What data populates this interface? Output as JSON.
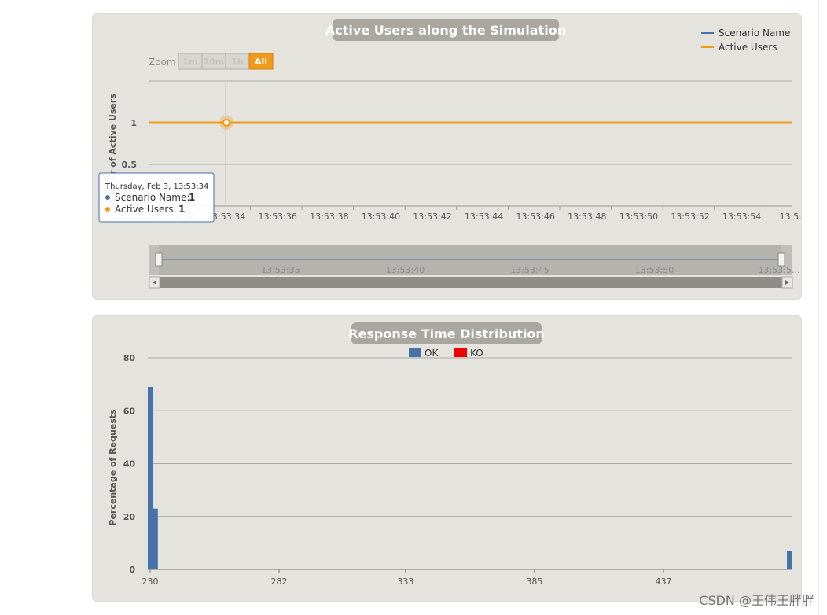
{
  "watermark": "CSDN @王伟王胖胖",
  "colors": {
    "panel_bg": "#e5e3de",
    "title_bg": "#a9a7a0",
    "orange": "#f09a1b",
    "blue": "#4572a7",
    "red": "#ee0000",
    "grid": "#a8a8a8"
  },
  "chart_data": [
    {
      "type": "line",
      "title": "Active Users along the Simulation",
      "ylabel": "Number of Active Users",
      "ylim": [
        0,
        1.5
      ],
      "y_ticks": [
        "0.5",
        "1"
      ],
      "x_tick_labels": [
        "13:53:32",
        "13:53:34",
        "13:53:36",
        "13:53:38",
        "13:53:40",
        "13:53:42",
        "13:53:44",
        "13:53:46",
        "13:53:48",
        "13:53:50",
        "13:53:52",
        "13:53:54",
        "13:5..."
      ],
      "legend": [
        "Scenario Name",
        "Active Users"
      ],
      "legend_position": "top-right",
      "series": [
        {
          "name": "Active Users",
          "x": [
            "13:53:31",
            "13:53:56"
          ],
          "values": [
            1,
            1
          ]
        }
      ],
      "zoom": {
        "label": "Zoom",
        "buttons": [
          "1m",
          "10m",
          "1h",
          "All"
        ],
        "active": "All"
      },
      "navigator_ticks": [
        "13:53:35",
        "13:53:40",
        "13:53:45",
        "13:53:50",
        "13:53:5..."
      ],
      "tooltip": {
        "header": "Thursday, Feb 3, 13:53:34",
        "rows": [
          {
            "label": "Scenario Name: ",
            "value": "1"
          },
          {
            "label": "Active Users: ",
            "value": "1"
          }
        ]
      }
    },
    {
      "type": "bar",
      "title": "Response Time Distribution",
      "ylabel": "Percentage of Requests",
      "ylim": [
        0,
        80
      ],
      "y_ticks": [
        "0",
        "20",
        "40",
        "60",
        "80"
      ],
      "x_tick_labels": [
        "230",
        "282",
        "333",
        "385",
        "437"
      ],
      "legend": [
        "OK",
        "KO"
      ],
      "legend_position": "top-center",
      "series": [
        {
          "name": "OK",
          "x": [
            230,
            232,
            488
          ],
          "values": [
            69,
            23,
            7
          ]
        },
        {
          "name": "KO",
          "x": [],
          "values": []
        }
      ]
    }
  ]
}
